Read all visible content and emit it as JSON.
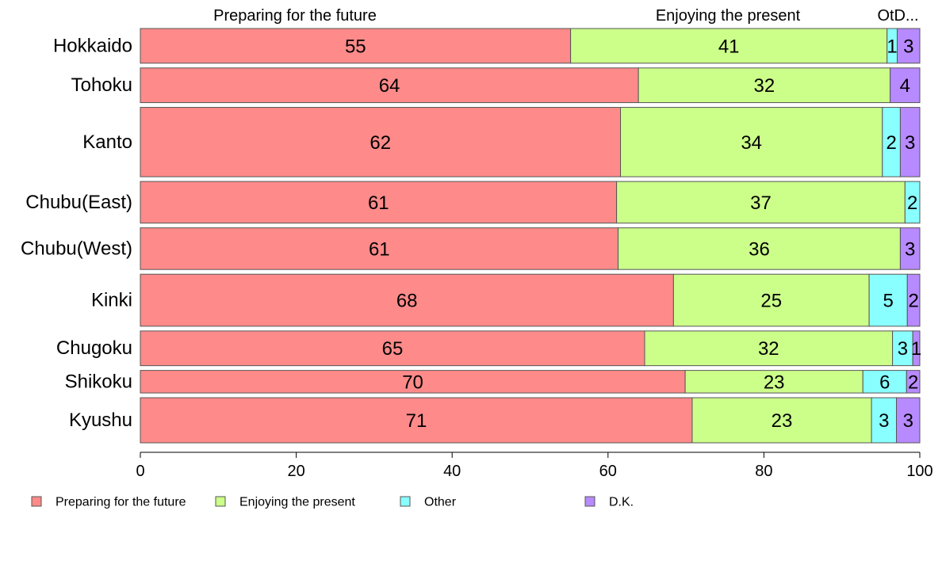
{
  "chart_data": {
    "type": "bar",
    "orientation": "horizontal",
    "stacked": true,
    "categories": [
      "Hokkaido",
      "Tohoku",
      "Kanto",
      "Chubu(East)",
      "Chubu(West)",
      "Kinki",
      "Chugoku",
      "Shikoku",
      "Kyushu"
    ],
    "series": [
      {
        "name": "Preparing for the future",
        "color": "#ff8a8a",
        "values": [
          55.2,
          63.9,
          61.6,
          61.1,
          61.3,
          68.4,
          64.7,
          69.9,
          70.8
        ]
      },
      {
        "name": "Enjoying the present",
        "color": "#ccff8a",
        "values": [
          40.6,
          32.3,
          33.6,
          37.0,
          36.2,
          25.1,
          31.8,
          22.8,
          23.0
        ]
      },
      {
        "name": "Other",
        "color": "#8affff",
        "values": [
          1.3,
          0.0,
          2.3,
          1.9,
          0.0,
          4.9,
          2.6,
          5.6,
          3.2
        ]
      },
      {
        "name": "D.K.",
        "color": "#b88aff",
        "values": [
          2.9,
          3.8,
          2.5,
          0.0,
          2.5,
          1.6,
          0.9,
          1.7,
          3.0
        ]
      }
    ],
    "data_labels": [
      [
        "55",
        "41",
        "1",
        "3"
      ],
      [
        "64",
        "32",
        "",
        "4"
      ],
      [
        "62",
        "34",
        "2",
        "3"
      ],
      [
        "61",
        "37",
        "2",
        ""
      ],
      [
        "61",
        "36",
        "",
        "3"
      ],
      [
        "68",
        "25",
        "5",
        "2"
      ],
      [
        "65",
        "32",
        "3",
        "1"
      ],
      [
        "70",
        "23",
        "6",
        "2"
      ],
      [
        "71",
        "23",
        "3",
        "3"
      ]
    ],
    "bar_weights": [
      1,
      1,
      2,
      1.2,
      1.2,
      1.5,
      1,
      0.65,
      1.3
    ],
    "top_labels": [
      "Preparing for the future",
      "Enjoying the present",
      "Ot",
      "D..."
    ],
    "xlim": [
      0,
      100
    ],
    "xticks": [
      "0",
      "20",
      "40",
      "60",
      "80",
      "100"
    ],
    "legend": {
      "placement": "bottom",
      "entries": [
        "Preparing for the future",
        "Enjoying the present",
        "Other",
        "D.K."
      ]
    },
    "grid": false
  }
}
